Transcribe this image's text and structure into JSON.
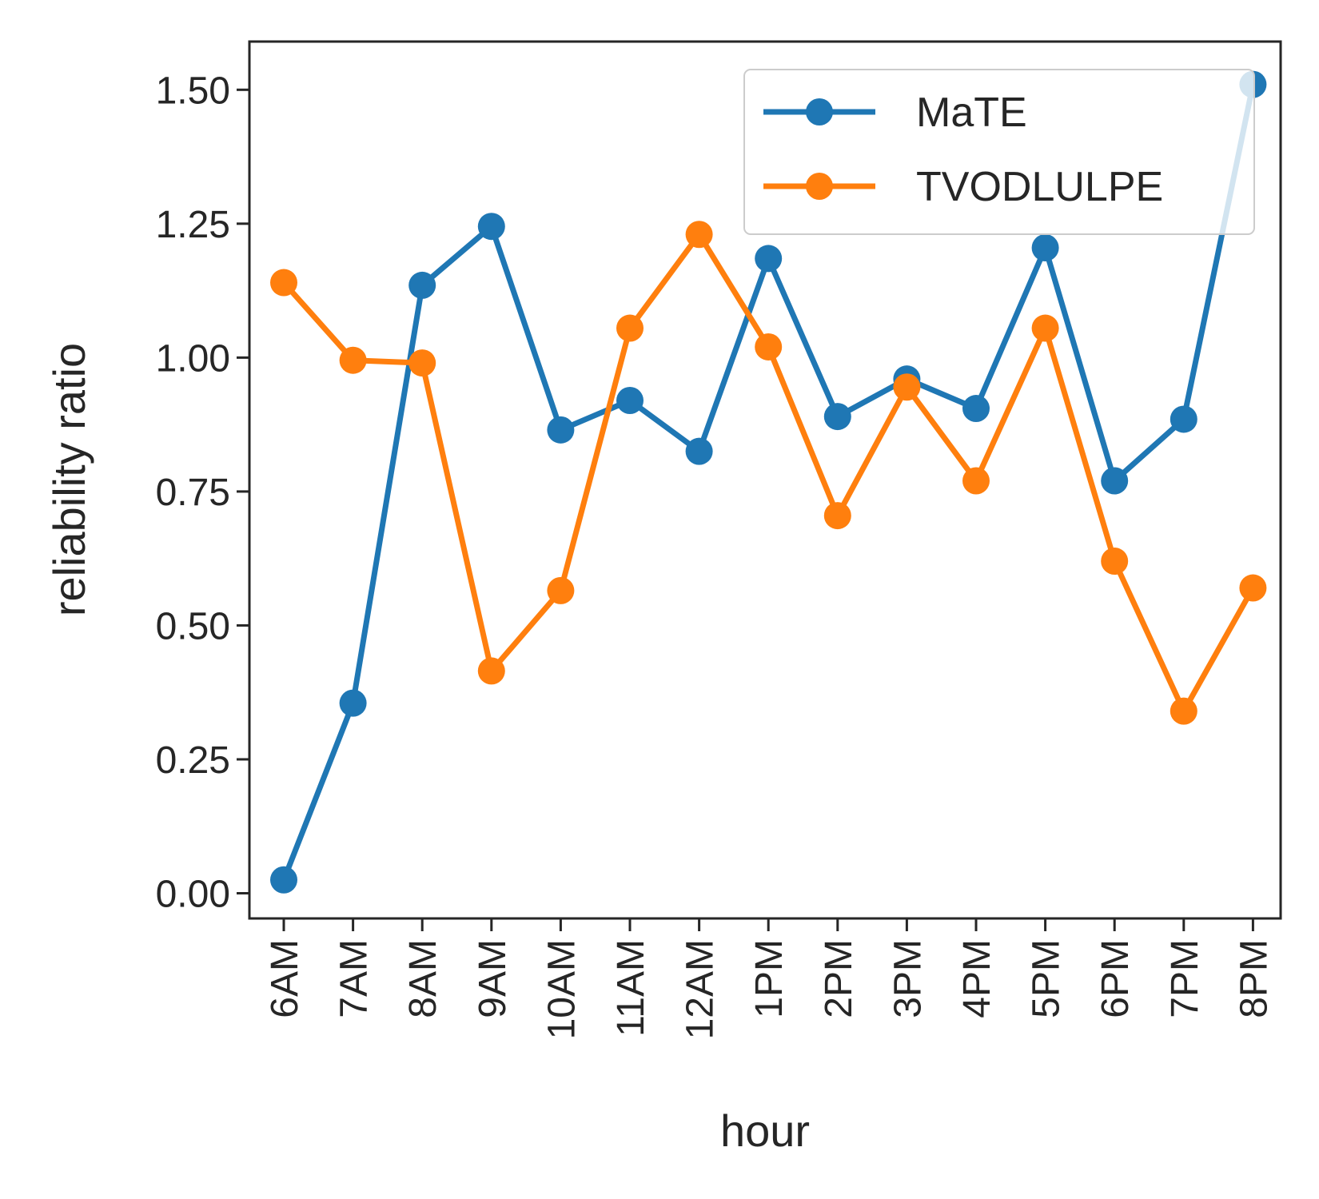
{
  "chart_data": {
    "type": "line",
    "title": "",
    "xlabel": "hour",
    "ylabel": "reliability ratio",
    "categories": [
      "6AM",
      "7AM",
      "8AM",
      "9AM",
      "10AM",
      "11AM",
      "12AM",
      "1PM",
      "2PM",
      "3PM",
      "4PM",
      "5PM",
      "6PM",
      "7PM",
      "8PM"
    ],
    "yticks": [
      "0.00",
      "0.25",
      "0.50",
      "0.75",
      "1.00",
      "1.25",
      "1.50"
    ],
    "ylim": [
      -0.047,
      1.59
    ],
    "grid": false,
    "legend": "top-right",
    "series": [
      {
        "name": "MaTE",
        "color": "#1f77b4",
        "values": [
          0.025,
          0.355,
          1.135,
          1.245,
          0.865,
          0.92,
          0.825,
          1.185,
          0.89,
          0.96,
          0.905,
          1.205,
          0.77,
          0.885,
          1.51
        ]
      },
      {
        "name": "TVODLULPE",
        "color": "#ff7f0e",
        "values": [
          1.14,
          0.995,
          0.99,
          0.415,
          0.565,
          1.055,
          1.23,
          1.02,
          0.705,
          0.945,
          0.77,
          1.055,
          0.62,
          0.34,
          0.57
        ]
      }
    ]
  }
}
